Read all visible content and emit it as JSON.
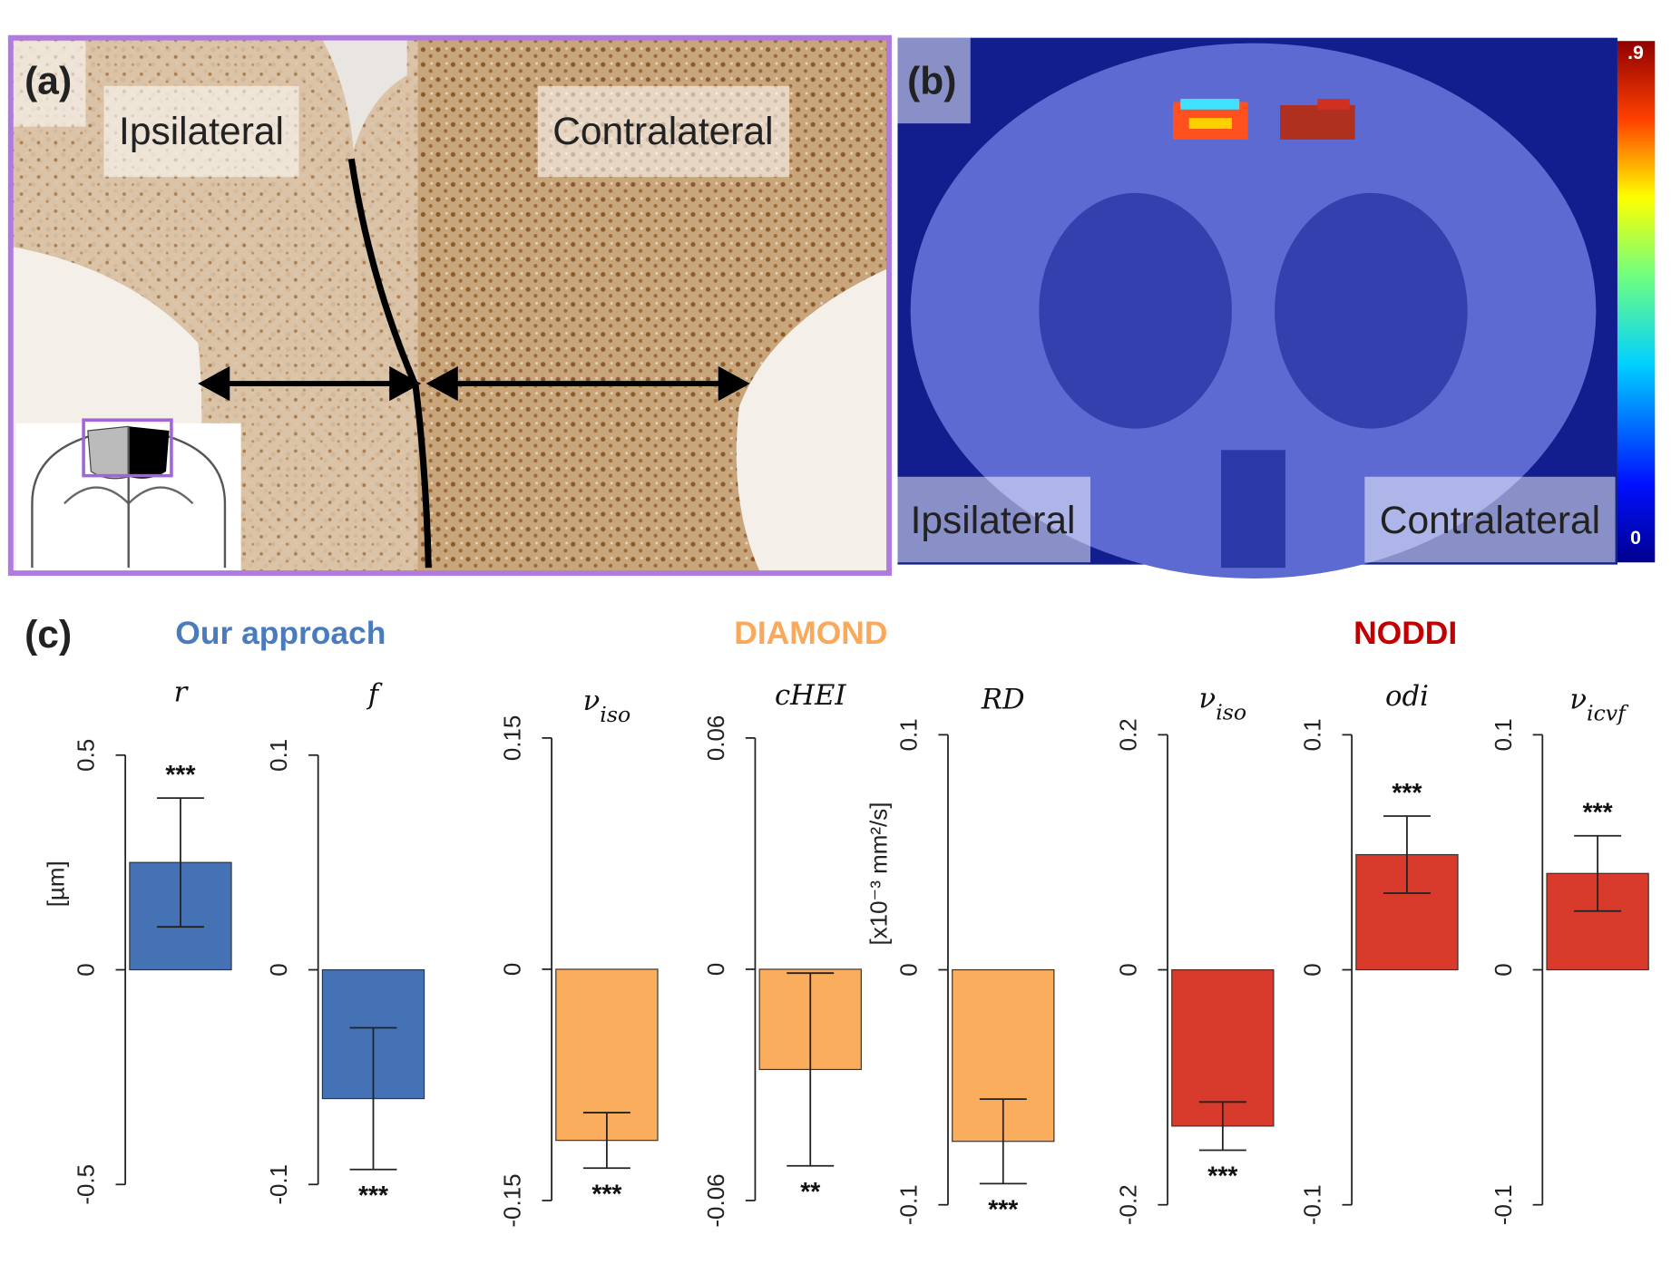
{
  "panel_a": {
    "label": "(a)",
    "left_label": "Ipsilateral",
    "right_label": "Contralateral"
  },
  "panel_b": {
    "label": "(b)",
    "left_label": "Ipsilateral",
    "right_label": "Contralateral",
    "colorbar": {
      "clim": [
        0,
        0.9
      ],
      "ticks": [
        {
          "value": 0.9,
          "label": ".9"
        },
        0
      ]
    }
  },
  "panel_c": {
    "label": "(c)",
    "groups": [
      {
        "name": "Our approach",
        "color": "#4a7bbd"
      },
      {
        "name": "DIAMOND",
        "color": "#f9a95c"
      },
      {
        "name": "NODDI",
        "color": "#c00000"
      }
    ]
  },
  "chart_data": [
    {
      "type": "bar",
      "title": "r",
      "ylabel": "[µm]",
      "values": [
        0.25
      ],
      "errors": [
        0.15
      ],
      "value_labels": [
        "***"
      ],
      "color": "#4472b4",
      "ylim": [
        -0.5,
        0.5
      ],
      "yticks": [
        -0.5,
        0,
        0.5
      ]
    },
    {
      "type": "bar",
      "title": "f",
      "values": [
        -0.06
      ],
      "errors": [
        0.033
      ],
      "value_labels": [
        "***"
      ],
      "color": "#4472b4",
      "ylim": [
        -0.1,
        0.1
      ],
      "yticks": [
        -0.1,
        0,
        0.1
      ]
    },
    {
      "type": "bar",
      "title": "ν",
      "title_sub": "iso",
      "values": [
        -0.111
      ],
      "errors": [
        0.018
      ],
      "value_labels": [
        "***"
      ],
      "color": "#fbad5e",
      "ylim": [
        -0.15,
        0.15
      ],
      "yticks": [
        -0.15,
        0,
        0.15
      ]
    },
    {
      "type": "bar",
      "title": "cHEI",
      "values": [
        -0.026
      ],
      "errors": [
        0.025
      ],
      "value_labels": [
        "**"
      ],
      "color": "#fbad5e",
      "ylim": [
        -0.06,
        0.06
      ],
      "yticks": [
        -0.06,
        0,
        0.06
      ]
    },
    {
      "type": "bar",
      "title": "RD",
      "ylabel": "[x10⁻³ mm²/s]",
      "values": [
        -0.073
      ],
      "errors": [
        0.018
      ],
      "value_labels": [
        "***"
      ],
      "color": "#fbad5e",
      "ylim": [
        -0.1,
        0.1
      ],
      "yticks": [
        -0.1,
        0,
        0.1
      ]
    },
    {
      "type": "bar",
      "title": "ν",
      "title_sub": "iso",
      "values": [
        -0.133
      ],
      "errors": [
        0.0205
      ],
      "value_labels": [
        "***"
      ],
      "color": "#d83a2c",
      "ylim": [
        -0.2,
        0.2
      ],
      "yticks": [
        -0.2,
        0,
        0.2
      ]
    },
    {
      "type": "bar",
      "title": "odi",
      "values": [
        0.049
      ],
      "errors": [
        0.0164
      ],
      "value_labels": [
        "***"
      ],
      "color": "#d83a2c",
      "ylim": [
        -0.1,
        0.1
      ],
      "yticks": [
        -0.1,
        0,
        0.1
      ]
    },
    {
      "type": "bar",
      "title": "ν",
      "title_sub": "icvf",
      "values": [
        0.041
      ],
      "errors": [
        0.016
      ],
      "value_labels": [
        "***"
      ],
      "color": "#d83a2c",
      "ylim": [
        -0.1,
        0.1
      ],
      "yticks": [
        -0.1,
        0,
        0.1
      ]
    }
  ]
}
